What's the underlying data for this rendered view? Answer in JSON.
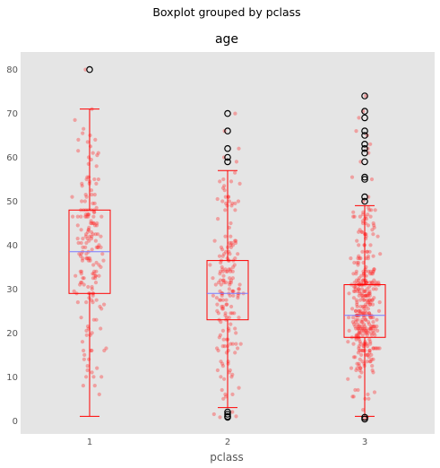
{
  "chart_data": {
    "type": "boxplot",
    "suptitle": "Boxplot grouped by pclass",
    "title": "age",
    "xlabel": "pclass",
    "ylabel": "",
    "ylim": [
      -3,
      84
    ],
    "yticks": [
      0,
      10,
      20,
      30,
      40,
      50,
      60,
      70,
      80
    ],
    "grid": false,
    "background": "#e5e5e5",
    "box_color": "#ff0000",
    "median_color": "#7b7bff",
    "point_color": "#ff3030",
    "groups": [
      {
        "label": "1",
        "whisker_low": 1,
        "q1": 29,
        "median": 38.5,
        "q3": 48,
        "whisker_high": 71,
        "outliers": [
          80
        ],
        "n_points": 186,
        "range": [
          1,
          80
        ]
      },
      {
        "label": "2",
        "whisker_low": 3,
        "q1": 23,
        "median": 29,
        "q3": 36.5,
        "whisker_high": 57,
        "outliers": [
          0.8,
          1,
          1.5,
          2,
          59,
          60,
          62,
          66,
          70
        ],
        "n_points": 173,
        "range": [
          0.8,
          70
        ]
      },
      {
        "label": "3",
        "whisker_low": 1,
        "q1": 19,
        "median": 24,
        "q3": 31,
        "whisker_high": 49,
        "outliers": [
          0.4,
          0.8,
          50,
          51,
          55,
          55.5,
          59,
          61,
          62,
          63,
          65,
          66,
          69,
          70.5,
          74
        ],
        "n_points": 355,
        "range": [
          0.4,
          74
        ]
      }
    ]
  }
}
